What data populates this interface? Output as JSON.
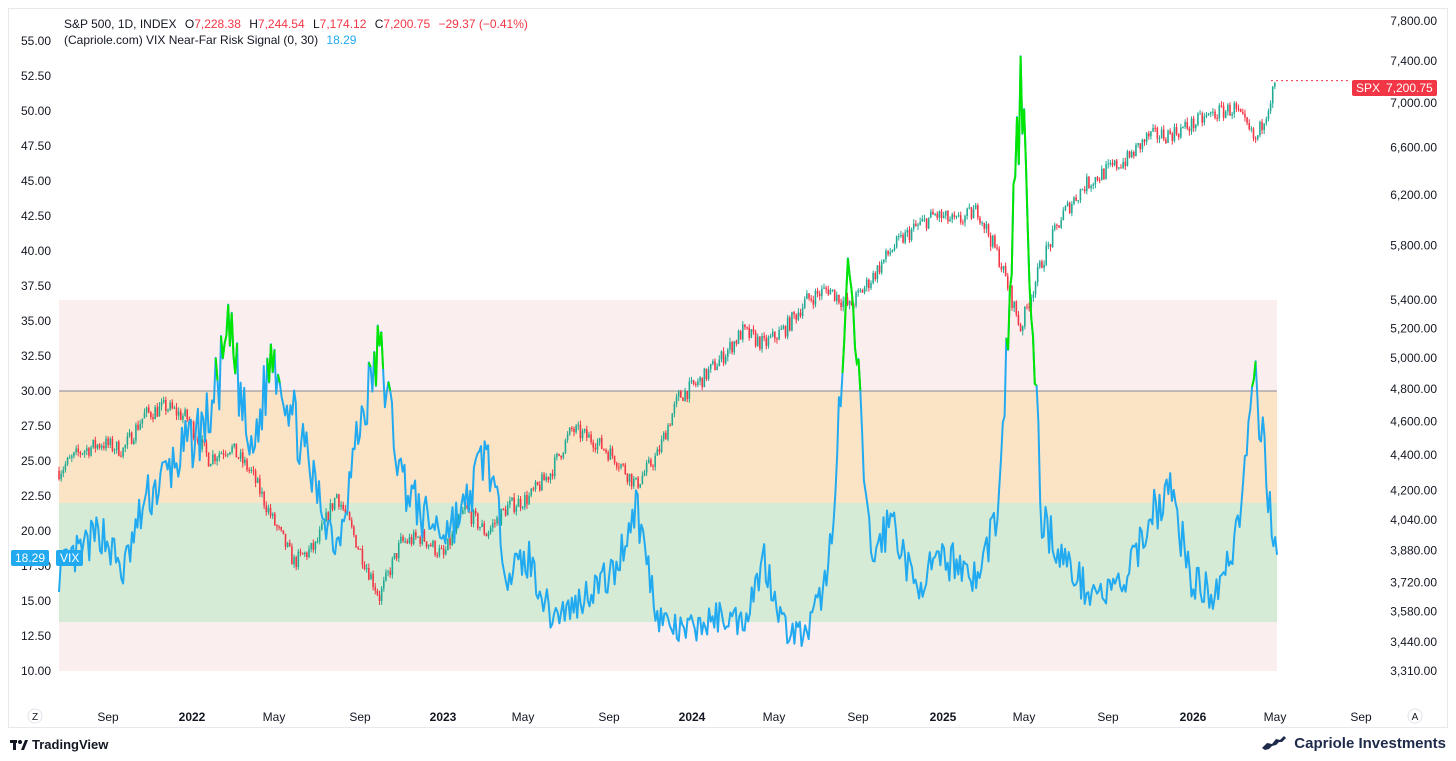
{
  "legend": {
    "symbol": "S&P 500, 1D, INDEX",
    "o_label": "O",
    "o_value": "7,228.38",
    "h_label": "H",
    "h_value": "7,244.54",
    "l_label": "L",
    "l_value": "7,174.12",
    "c_label": "C",
    "c_value": "7,200.75",
    "change": "−29.37 (−0.41%)",
    "indicator": "(Capriole.com) VIX Near-Far Risk Signal (0, 30)",
    "indicator_value": "18.29"
  },
  "tags": {
    "spx_name": "SPX",
    "spx_value": "7,200.75",
    "vix_value": "18.29",
    "vix_name": "VIX"
  },
  "footer": {
    "brand": "TradingView",
    "publisher": "Capriole Investments"
  },
  "axis_buttons": {
    "left": "Z",
    "right": "A"
  },
  "colors": {
    "vix_line": "#22aaf0",
    "signal": "#00e600",
    "spx_up": "#22ab94",
    "spx_down": "#f23645",
    "zone_red": "#fbeeee",
    "zone_orange": "#fbe4c6",
    "zone_green": "#d6ebd6",
    "threshold_line": "#868993"
  },
  "chart_data": {
    "type": "line",
    "left_axis": {
      "ticks": [
        "55.00",
        "52.50",
        "50.00",
        "47.50",
        "45.00",
        "42.50",
        "40.00",
        "37.50",
        "35.00",
        "32.50",
        "30.00",
        "27.50",
        "25.00",
        "22.50",
        "20.00",
        "17.50",
        "15.00",
        "12.50",
        "10.00"
      ],
      "range": [
        10,
        55
      ]
    },
    "right_axis": {
      "ticks": [
        "7,800.00",
        "7,400.00",
        "7,000.00",
        "6,600.00",
        "6,200.00",
        "5,800.00",
        "5,400.00",
        "5,200.00",
        "5,000.00",
        "4,800.00",
        "4,600.00",
        "4,400.00",
        "4,200.00",
        "4,040.00",
        "3,880.00",
        "3,720.00",
        "3,580.00",
        "3,440.00",
        "3,310.00"
      ],
      "scale": "log",
      "range": [
        3310,
        7800
      ]
    },
    "x_axis": {
      "labels": [
        "Sep",
        "2022",
        "May",
        "Sep",
        "2023",
        "May",
        "Sep",
        "2024",
        "May",
        "Sep",
        "2025",
        "May",
        "Sep",
        "2026",
        "May",
        "Sep"
      ],
      "bold": [
        "2022",
        "2023",
        "2024",
        "2025",
        "2026"
      ]
    },
    "zones": [
      {
        "name": "red",
        "from": 10.0,
        "to": 36.5
      },
      {
        "name": "orange",
        "from": 22.0,
        "to": 30.0
      },
      {
        "name": "green",
        "from": 13.5,
        "to": 22.0
      }
    ],
    "threshold": 30,
    "series": [
      {
        "name": "SPX",
        "x": [
          "2021-07",
          "2021-08",
          "2021-09",
          "2021-10",
          "2021-11",
          "2021-12",
          "2022-01",
          "2022-02",
          "2022-03",
          "2022-04",
          "2022-05",
          "2022-06",
          "2022-07",
          "2022-08",
          "2022-09",
          "2022-10",
          "2022-11",
          "2022-12",
          "2023-01",
          "2023-02",
          "2023-03",
          "2023-04",
          "2023-05",
          "2023-06",
          "2023-07",
          "2023-08",
          "2023-09",
          "2023-10",
          "2023-11",
          "2023-12",
          "2024-01",
          "2024-02",
          "2024-03",
          "2024-04",
          "2024-05",
          "2024-06",
          "2024-07",
          "2024-08",
          "2024-09",
          "2024-10",
          "2024-11",
          "2024-12",
          "2025-01",
          "2025-02",
          "2025-03",
          "2025-04",
          "2025-05",
          "2025-06",
          "2025-07",
          "2025-08",
          "2025-09",
          "2025-10",
          "2025-11",
          "2025-12",
          "2026-01",
          "2026-02",
          "2026-03",
          "2026-04"
        ],
        "values": [
          4310,
          4420,
          4470,
          4430,
          4640,
          4690,
          4620,
          4380,
          4450,
          4300,
          4040,
          3820,
          3900,
          4180,
          3900,
          3650,
          3920,
          3950,
          3850,
          4100,
          3970,
          4110,
          4160,
          4300,
          4550,
          4490,
          4390,
          4230,
          4400,
          4750,
          4850,
          5000,
          5180,
          5090,
          5200,
          5400,
          5480,
          5350,
          5550,
          5780,
          5930,
          6040,
          5980,
          6080,
          5700,
          5200,
          5680,
          6050,
          6280,
          6400,
          6500,
          6700,
          6720,
          6800,
          6900,
          6950,
          6650,
          7210
        ]
      },
      {
        "name": "VIX",
        "x": [
          "2021-07",
          "2021-08",
          "2021-09",
          "2021-10",
          "2021-11",
          "2021-12",
          "2022-01",
          "2022-02",
          "2022-03",
          "2022-04",
          "2022-05",
          "2022-06",
          "2022-07",
          "2022-08",
          "2022-09",
          "2022-10",
          "2022-11",
          "2022-12",
          "2023-01",
          "2023-02",
          "2023-03",
          "2023-04",
          "2023-05",
          "2023-06",
          "2023-07",
          "2023-08",
          "2023-09",
          "2023-10",
          "2023-11",
          "2023-12",
          "2024-01",
          "2024-02",
          "2024-03",
          "2024-04",
          "2024-05",
          "2024-06",
          "2024-07",
          "2024-08",
          "2024-09",
          "2024-10",
          "2024-11",
          "2024-12",
          "2025-01",
          "2025-02",
          "2025-03",
          "2025-04",
          "2025-05",
          "2025-06",
          "2025-07",
          "2025-08",
          "2025-09",
          "2025-10",
          "2025-11",
          "2025-12",
          "2026-01",
          "2026-02",
          "2026-03",
          "2026-04"
        ],
        "values": [
          17.0,
          18.5,
          20.0,
          17.0,
          22.0,
          24.0,
          26.0,
          28.0,
          34.0,
          25.0,
          33.0,
          28.0,
          23.0,
          19.0,
          27.0,
          33.0,
          24.0,
          21.0,
          20.0,
          21.5,
          26.0,
          17.0,
          18.0,
          14.0,
          14.5,
          16.0,
          17.0,
          22.0,
          14.0,
          12.8,
          13.2,
          14.0,
          13.5,
          18.0,
          13.0,
          12.5,
          17.0,
          38.5,
          18.0,
          21.0,
          16.0,
          17.5,
          18.0,
          16.5,
          22.0,
          52.0,
          21.0,
          18.0,
          16.0,
          15.5,
          16.5,
          21.0,
          23.0,
          16.5,
          15.5,
          19.0,
          30.0,
          18.3
        ]
      }
    ]
  }
}
